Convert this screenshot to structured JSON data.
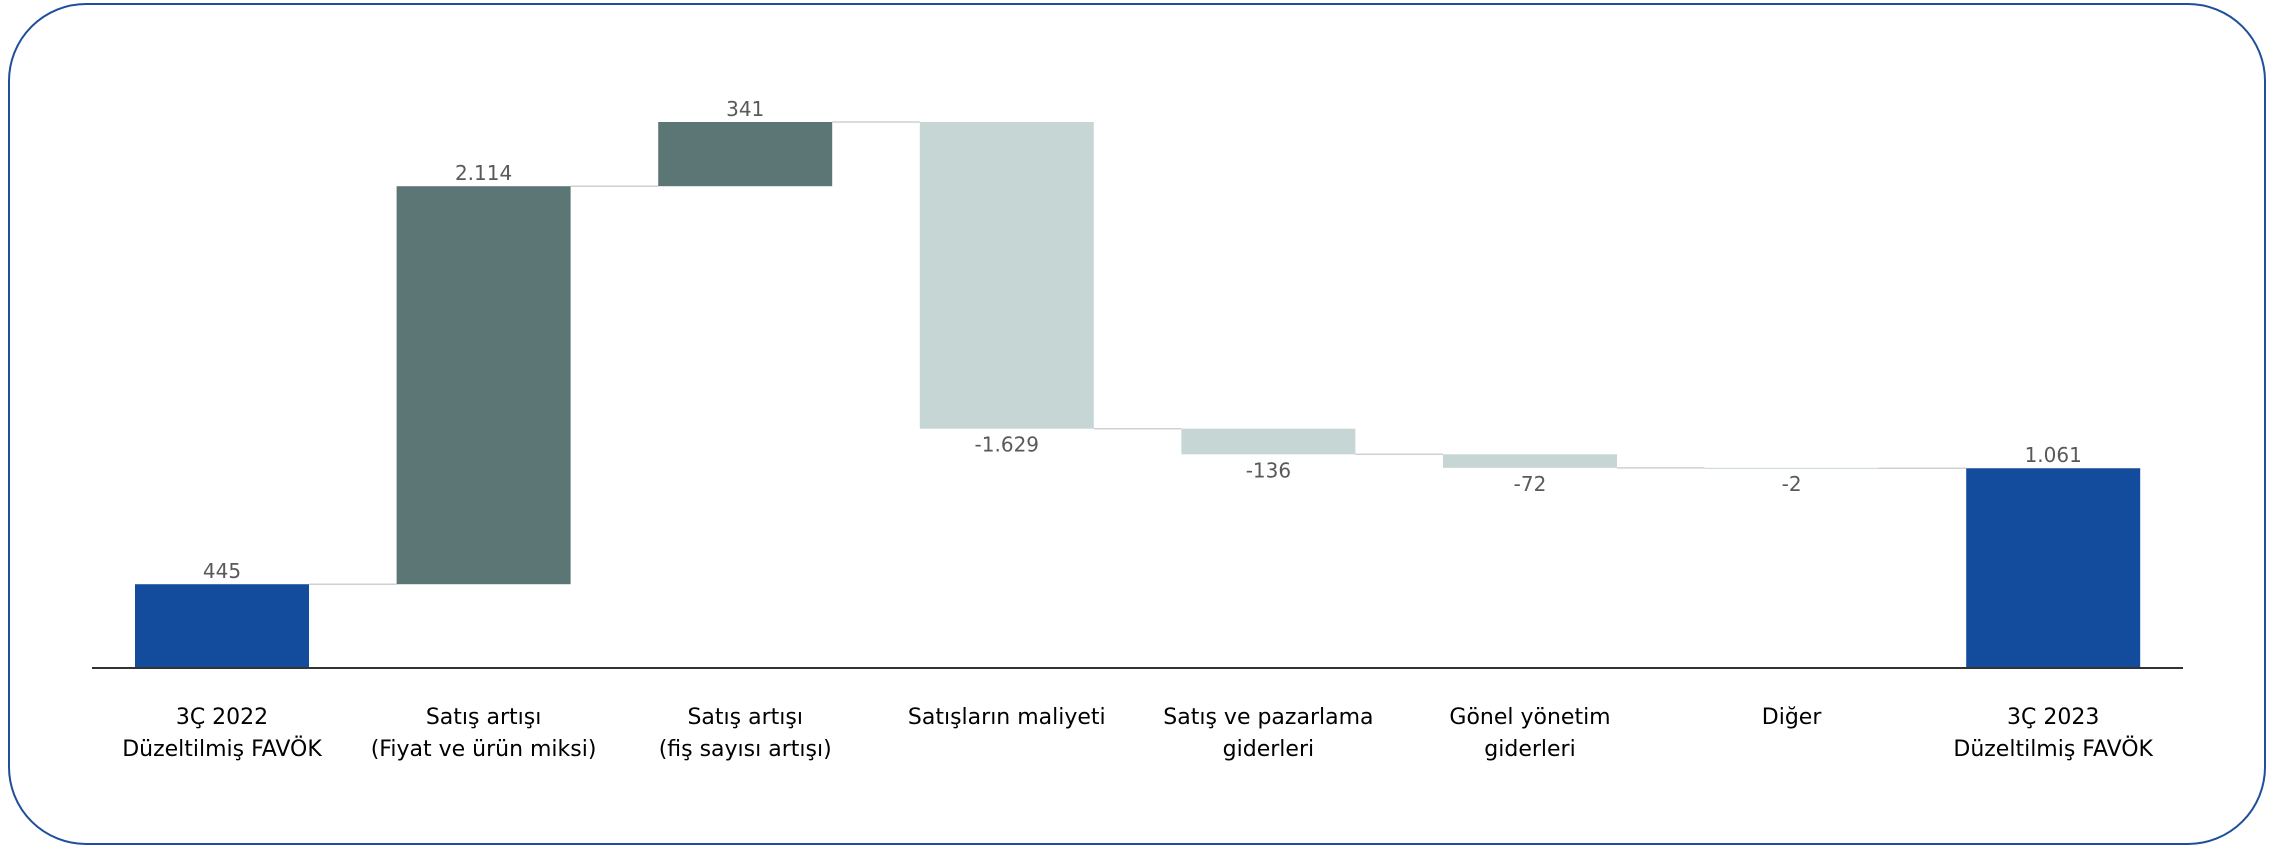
{
  "colors": {
    "frame": "#1f4e9a",
    "total": "#134b9d",
    "increase": "#5b7675",
    "decrease": "#c6d6d4",
    "axis": "#333333",
    "connector": "#d0d0d0",
    "value_label": "#595959"
  },
  "chart_data": {
    "type": "bar",
    "subtype": "waterfall",
    "title": "",
    "xlabel": "",
    "ylabel": "",
    "ylim": [
      0,
      2900
    ],
    "grid": false,
    "legend": "none",
    "categories": [
      [
        "3Ç 2022",
        "Düzeltilmiş FAVÖK"
      ],
      [
        "Satış artışı",
        "(Fiyat ve ürün miksi)"
      ],
      [
        "Satış artışı",
        "(fiş sayısı artışı)"
      ],
      [
        "Satışların maliyeti"
      ],
      [
        "Satış ve pazarlama",
        "giderleri"
      ],
      [
        "Gönel yönetim",
        "giderleri"
      ],
      [
        "Diğer"
      ],
      [
        "3Ç 2023",
        "Düzeltilmiş FAVÖK"
      ]
    ],
    "values": [
      445,
      2114,
      341,
      -1629,
      -136,
      -72,
      -2,
      1061
    ],
    "value_labels": [
      "445",
      "2.114",
      "341",
      "-1.629",
      "-136",
      "-72",
      "-2",
      "1.061"
    ],
    "kinds": [
      "total",
      "increase",
      "increase",
      "decrease",
      "decrease",
      "decrease",
      "decrease",
      "total"
    ]
  }
}
